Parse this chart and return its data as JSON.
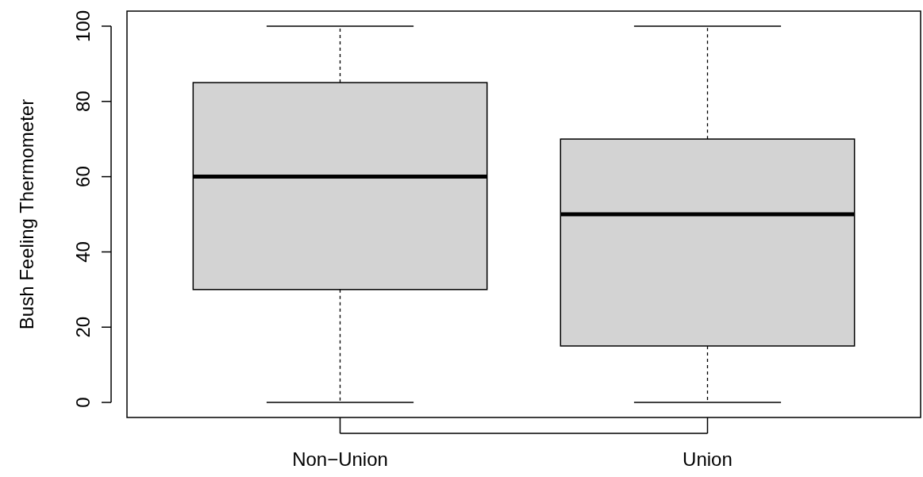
{
  "chart_data": {
    "type": "box",
    "ylabel": "Bush Feeling Thermometer",
    "categories": [
      "Non−Union",
      "Union"
    ],
    "boxes": [
      {
        "low": 0,
        "q1": 30,
        "median": 60,
        "q3": 85,
        "high": 100
      },
      {
        "low": 0,
        "q1": 15,
        "median": 50,
        "q3": 70,
        "high": 100
      }
    ],
    "color": "#d3d3d3",
    "ylim": [
      -4,
      104
    ],
    "yticks": [
      0,
      20,
      40,
      60,
      80,
      100
    ],
    "grid": false,
    "line_style": "dashed"
  }
}
